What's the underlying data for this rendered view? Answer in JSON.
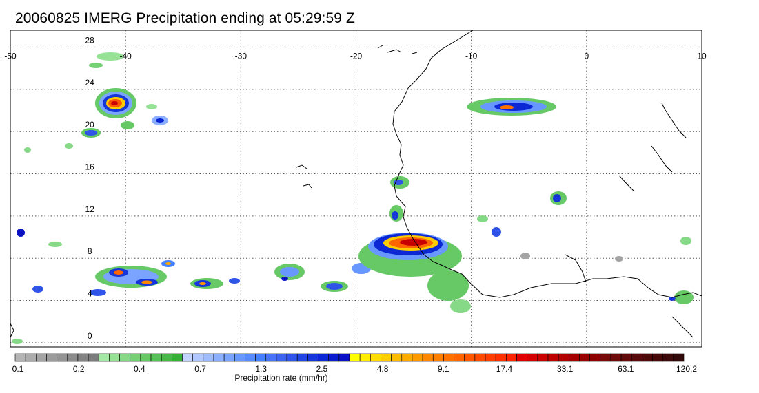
{
  "header": {
    "title": "20060825 IMERG Precipitation ending at 05:29:59 Z"
  },
  "map": {
    "lon_range": [
      -50,
      10
    ],
    "lat_range": [
      -0.4,
      29.6
    ],
    "lon_ticks": [
      "-50",
      "-40",
      "-30",
      "-20",
      "-10",
      "0",
      "10"
    ],
    "lon_tick_values": [
      -50,
      -40,
      -30,
      -20,
      -10,
      0,
      10
    ],
    "lat_ticks": [
      "0",
      "4",
      "8",
      "12",
      "16",
      "20",
      "24",
      "28"
    ],
    "lat_tick_values": [
      0,
      4,
      8,
      12,
      16,
      20,
      24,
      28
    ],
    "grid": "dotted",
    "coastline_color": "#000000"
  },
  "colorbar": {
    "title": "Precipitation rate (mm/hr)",
    "tick_labels": [
      "0.1",
      "0.2",
      "0.4",
      "0.7",
      "1.3",
      "2.5",
      "4.8",
      "9.1",
      "17.4",
      "33.1",
      "63.1",
      "120.2"
    ],
    "colors": [
      "#b4b4b4",
      "#acacac",
      "#a4a4a4",
      "#9c9c9c",
      "#949494",
      "#8c8c8c",
      "#848484",
      "#7c7c7c",
      "#a6e9a6",
      "#96e196",
      "#86d986",
      "#76d176",
      "#66c966",
      "#56c156",
      "#46b946",
      "#36b136",
      "#c2d4ff",
      "#b0c8ff",
      "#9ebcff",
      "#8cb0ff",
      "#7aa4ff",
      "#6898ff",
      "#568cff",
      "#4480ff",
      "#4a72f6",
      "#3d63ef",
      "#3054e8",
      "#2345e1",
      "#1636da",
      "#0c28d4",
      "#0a1ccc",
      "#0a10c4",
      "#ffff00",
      "#ffee00",
      "#ffdd00",
      "#ffcc00",
      "#ffbb00",
      "#ffaa00",
      "#ff9900",
      "#ff8800",
      "#ff7f00",
      "#ff7200",
      "#ff6500",
      "#ff5800",
      "#ff4b00",
      "#ff3e00",
      "#ff3100",
      "#ff2400",
      "#e00000",
      "#d40000",
      "#c80000",
      "#bc0000",
      "#b00000",
      "#a40000",
      "#980000",
      "#8c0000",
      "#7a0a0a",
      "#6e0a0a",
      "#640a0a",
      "#5a0a0a",
      "#500a0a",
      "#460a0a",
      "#3c0a0a",
      "#320a0a"
    ]
  }
}
